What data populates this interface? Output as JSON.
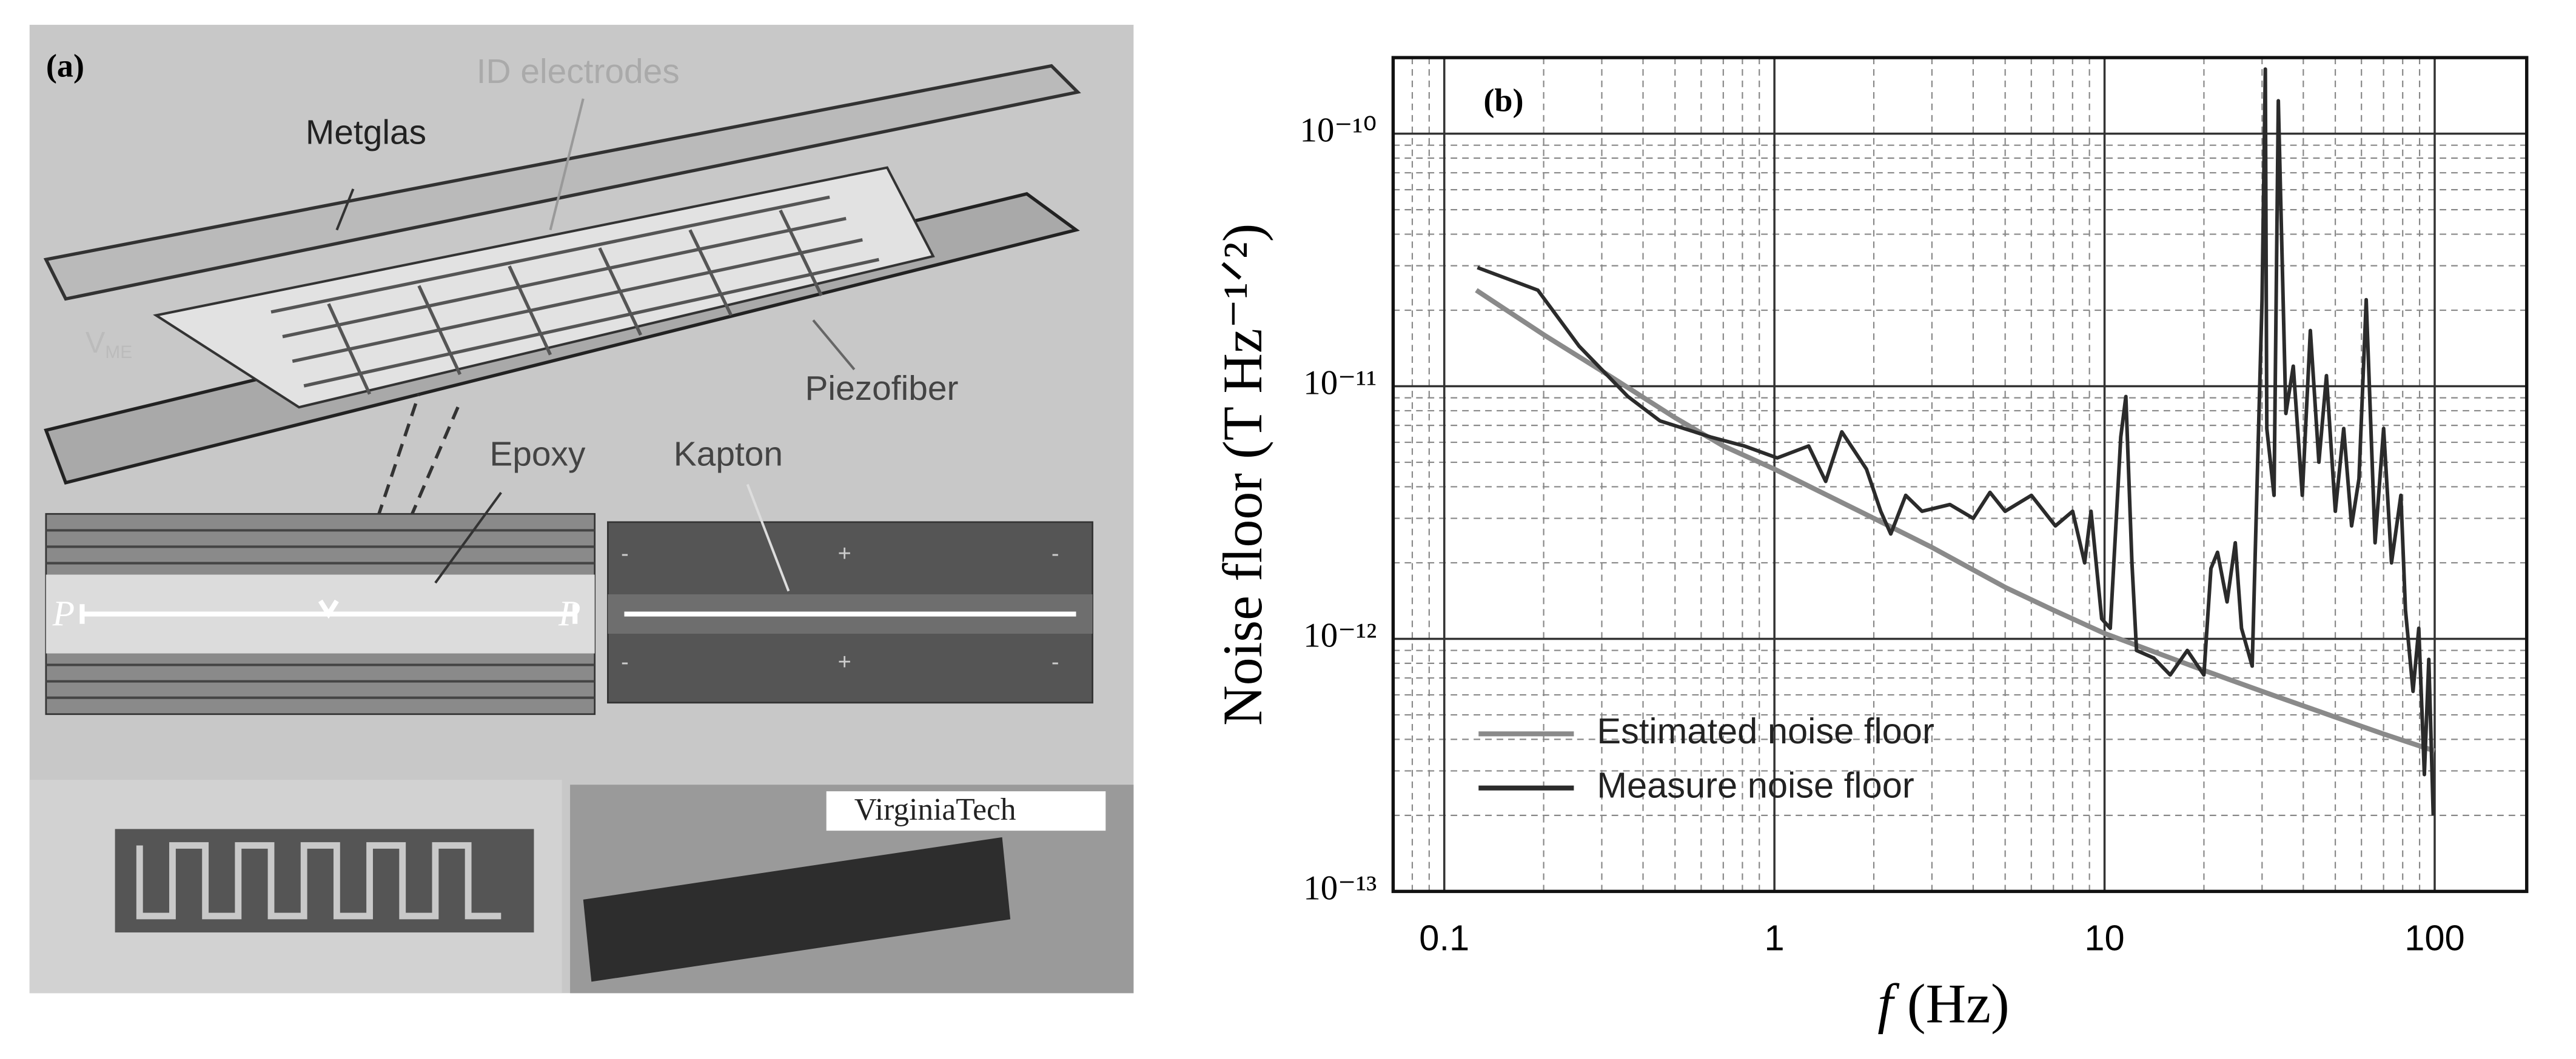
{
  "panel_a": {
    "label": "(a)",
    "id_electrodes": "ID electrodes",
    "metglas": "Metglas",
    "piezofiber": "Piezofiber",
    "epoxy": "Epoxy",
    "kapton": "Kapton",
    "polarization": [
      "P",
      "P"
    ],
    "vme": {
      "symbol": "V",
      "subscript": "ME"
    },
    "kapton_signs": [
      "-",
      "+",
      "-",
      "-",
      "+",
      "-"
    ],
    "logo": "VirginiaTech"
  },
  "chart_data": {
    "type": "line",
    "panel_label": "(b)",
    "ylabel": "Noise floor (T Hz⁻¹ᐟ²)",
    "xlabel": {
      "symbol": "f",
      "unit": "(Hz)"
    },
    "log_x": true,
    "log_y": true,
    "xlim": [
      0.07,
      190
    ],
    "ylim": [
      1e-13,
      2e-10
    ],
    "xticks": [
      0.1,
      1,
      10,
      100
    ],
    "yticks": [
      {
        "value": 1e-13,
        "label": "10⁻¹³"
      },
      {
        "value": 1e-12,
        "label": "10⁻¹²"
      },
      {
        "value": 1e-11,
        "label": "10⁻¹¹"
      },
      {
        "value": 1e-10,
        "label": "10⁻¹⁰"
      }
    ],
    "x_minor_ticks": [
      0.08,
      0.09,
      0.2,
      0.3,
      0.4,
      0.5,
      0.6,
      0.7,
      0.8,
      0.9,
      2,
      3,
      4,
      5,
      6,
      7,
      8,
      9,
      20,
      30,
      40,
      50,
      60,
      70,
      80,
      90
    ],
    "y_minor_ticks": [
      2e-13,
      3e-13,
      4e-13,
      5e-13,
      6e-13,
      7e-13,
      8e-13,
      9e-13,
      2e-12,
      3e-12,
      4e-12,
      5e-12,
      6e-12,
      7e-12,
      8e-12,
      9e-12,
      2e-11,
      3e-11,
      4e-11,
      5e-11,
      6e-11,
      7e-11,
      8e-11,
      9e-11
    ],
    "grid": {
      "major": true,
      "minor": true
    },
    "legend": "lower left",
    "series": [
      {
        "name": "Estimated noise floor",
        "color": "#8a8a8a",
        "x": [
          0.125,
          0.2,
          0.3,
          0.5,
          0.7,
          1,
          2,
          3,
          5,
          7,
          10,
          20,
          30,
          50,
          70,
          100
        ],
        "values": [
          2.4e-11,
          1.6e-11,
          1.15e-11,
          7.5e-12,
          5.8e-12,
          4.7e-12,
          3e-12,
          2.3e-12,
          1.6e-12,
          1.3e-12,
          1.05e-12,
          7.5e-13,
          6.2e-13,
          4.9e-13,
          4.2e-13,
          3.6e-13
        ]
      },
      {
        "name": "Measure noise floor",
        "color": "#2b2b2b",
        "x": [
          0.126,
          0.192,
          0.256,
          0.36,
          0.45,
          0.64,
          0.81,
          1.02,
          1.27,
          1.43,
          1.6,
          1.9,
          2.1,
          2.25,
          2.5,
          2.8,
          3.4,
          4.0,
          4.5,
          5.0,
          6.0,
          7.1,
          8.0,
          8.7,
          9.1,
          9.8,
          10.4,
          11.2,
          11.6,
          12.1,
          12.5,
          14.1,
          15.8,
          17.8,
          20,
          21,
          22,
          23.5,
          24.9,
          26,
          28,
          30,
          30.7,
          31,
          32.6,
          33.6,
          35.4,
          37.3,
          39.7,
          42,
          44.6,
          47,
          50,
          53,
          56,
          59,
          62,
          66,
          70,
          74,
          79,
          81.6,
          86,
          89.5,
          93,
          96,
          99
        ],
        "values": [
          2.95e-11,
          2.4e-11,
          1.44e-11,
          9.1e-12,
          7.3e-12,
          6.3e-12,
          5.8e-12,
          5.2e-12,
          5.8e-12,
          4.2e-12,
          6.6e-12,
          4.7e-12,
          3.2e-12,
          2.6e-12,
          3.7e-12,
          3.2e-12,
          3.4e-12,
          3e-12,
          3.8e-12,
          3.2e-12,
          3.7e-12,
          2.8e-12,
          3.2e-12,
          2e-12,
          3.2e-12,
          1.2e-12,
          1.1e-12,
          6.3e-12,
          9.1e-12,
          2e-12,
          9e-13,
          8.4e-13,
          7.2e-13,
          9e-13,
          7.2e-13,
          1.9e-12,
          2.2e-12,
          1.4e-12,
          2.4e-12,
          1.1e-12,
          7.8e-13,
          2.2e-11,
          1.8e-10,
          6.8e-12,
          3.7e-12,
          1.35e-10,
          7.8e-12,
          1.2e-11,
          3.7e-12,
          1.66e-11,
          5e-12,
          1.1e-11,
          3.2e-12,
          6.8e-12,
          2.8e-12,
          4.3e-12,
          2.2e-11,
          2.4e-12,
          6.8e-12,
          2e-12,
          3.7e-12,
          1.3e-12,
          6.2e-13,
          1.1e-12,
          2.9e-13,
          8.3e-13,
          2e-13
        ]
      }
    ]
  }
}
